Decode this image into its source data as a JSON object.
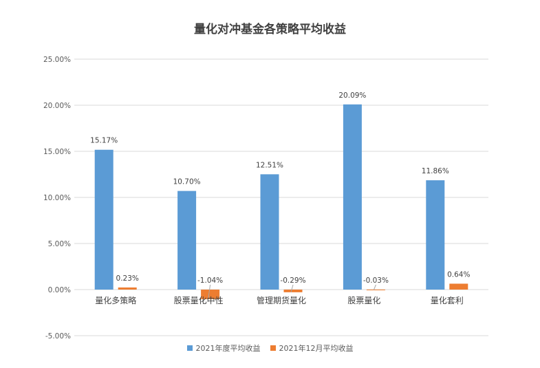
{
  "chart_data": {
    "type": "bar",
    "title": "量化对冲基金各策略平均收益",
    "categories": [
      "量化多策略",
      "股票量化中性",
      "管理期货量化",
      "股票量化",
      "量化套利"
    ],
    "series": [
      {
        "name": "2021年度平均收益",
        "values": [
          15.17,
          10.7,
          12.51,
          20.09,
          11.86
        ],
        "labels": [
          "15.17%",
          "10.70%",
          "12.51%",
          "20.09%",
          "11.86%"
        ],
        "color": "#5b9bd5"
      },
      {
        "name": "2021年12月平均收益",
        "values": [
          0.23,
          -1.04,
          -0.29,
          -0.03,
          0.64
        ],
        "labels": [
          "0.23%",
          "-1.04%",
          "-0.29%",
          "-0.03%",
          "0.64%"
        ],
        "color": "#ed7d31"
      }
    ],
    "y_ticks": [
      "25.00%",
      "20.00%",
      "15.00%",
      "10.00%",
      "5.00%",
      "0.00%",
      "-5.00%"
    ],
    "y_tick_values": [
      25,
      20,
      15,
      10,
      5,
      0,
      -5
    ],
    "ylim": [
      -5,
      25
    ],
    "grid": true,
    "legend_position": "bottom"
  }
}
